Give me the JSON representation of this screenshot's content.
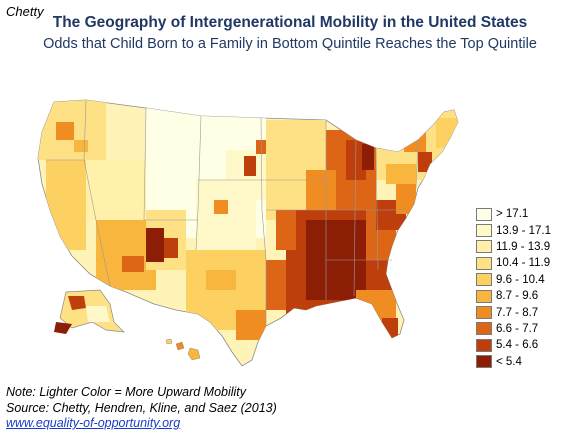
{
  "corner_label": "Chetty",
  "title": "The Geography of Intergenerational Mobility in the United States",
  "subtitle": "Odds that Child Born to a Family in Bottom Quintile Reaches the Top Quintile",
  "legend": {
    "items": [
      {
        "label": "> 17.1",
        "color": "#ffffe5"
      },
      {
        "label": "13.9 - 17.1",
        "color": "#fff8c8"
      },
      {
        "label": "11.9 - 13.9",
        "color": "#ffefaa"
      },
      {
        "label": "10.4 - 11.9",
        "color": "#fde184"
      },
      {
        "label": "9.6 - 10.4",
        "color": "#fcd061"
      },
      {
        "label": "8.7 - 9.6",
        "color": "#f9b63e"
      },
      {
        "label": "7.7 - 8.7",
        "color": "#ef8c22"
      },
      {
        "label": "6.6 - 7.7",
        "color": "#dc6516"
      },
      {
        "label": "5.4 - 6.6",
        "color": "#bf3f0c"
      },
      {
        "label": "< 5.4",
        "color": "#8c1e05"
      }
    ]
  },
  "notes": {
    "line1": "Note: Lighter Color = More Upward Mobility",
    "line2": "Source: Chetty, Hendren, Kline, and Saez (2013)",
    "link": "www.equality-of-opportunity.org"
  }
}
